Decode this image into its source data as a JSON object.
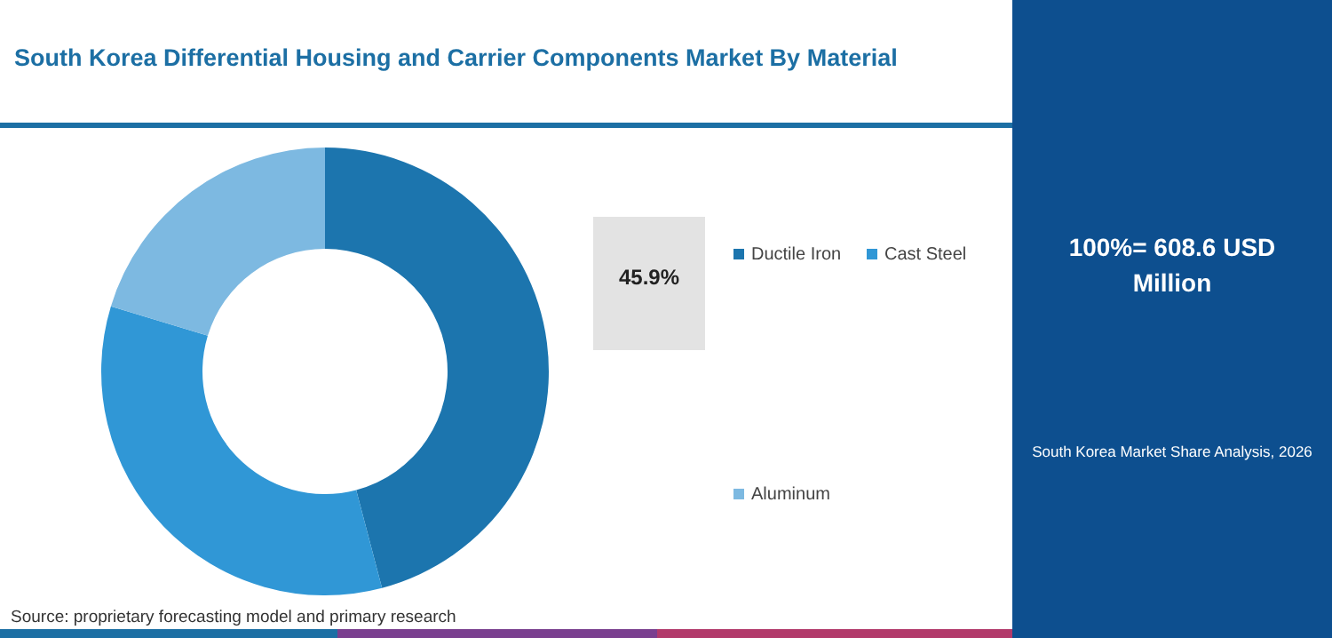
{
  "chart_data": {
    "type": "donut",
    "title": "South Korea Differential Housing and Carrier Components Market By Material",
    "categories": [
      "Ductile Iron",
      "Cast Steel",
      "Aluminum"
    ],
    "values": [
      45.9,
      33.8,
      20.3
    ],
    "colors": [
      "#1c75ae",
      "#3097d6",
      "#7db9e1"
    ],
    "value_labels": [
      "45.9%",
      null,
      null
    ],
    "legend": "right",
    "annotations": [
      "100%= 608.6 USD Million",
      "South Korea Market Share Analysis, 2026",
      "Source: proprietary forecasting model and primary research"
    ]
  }
}
